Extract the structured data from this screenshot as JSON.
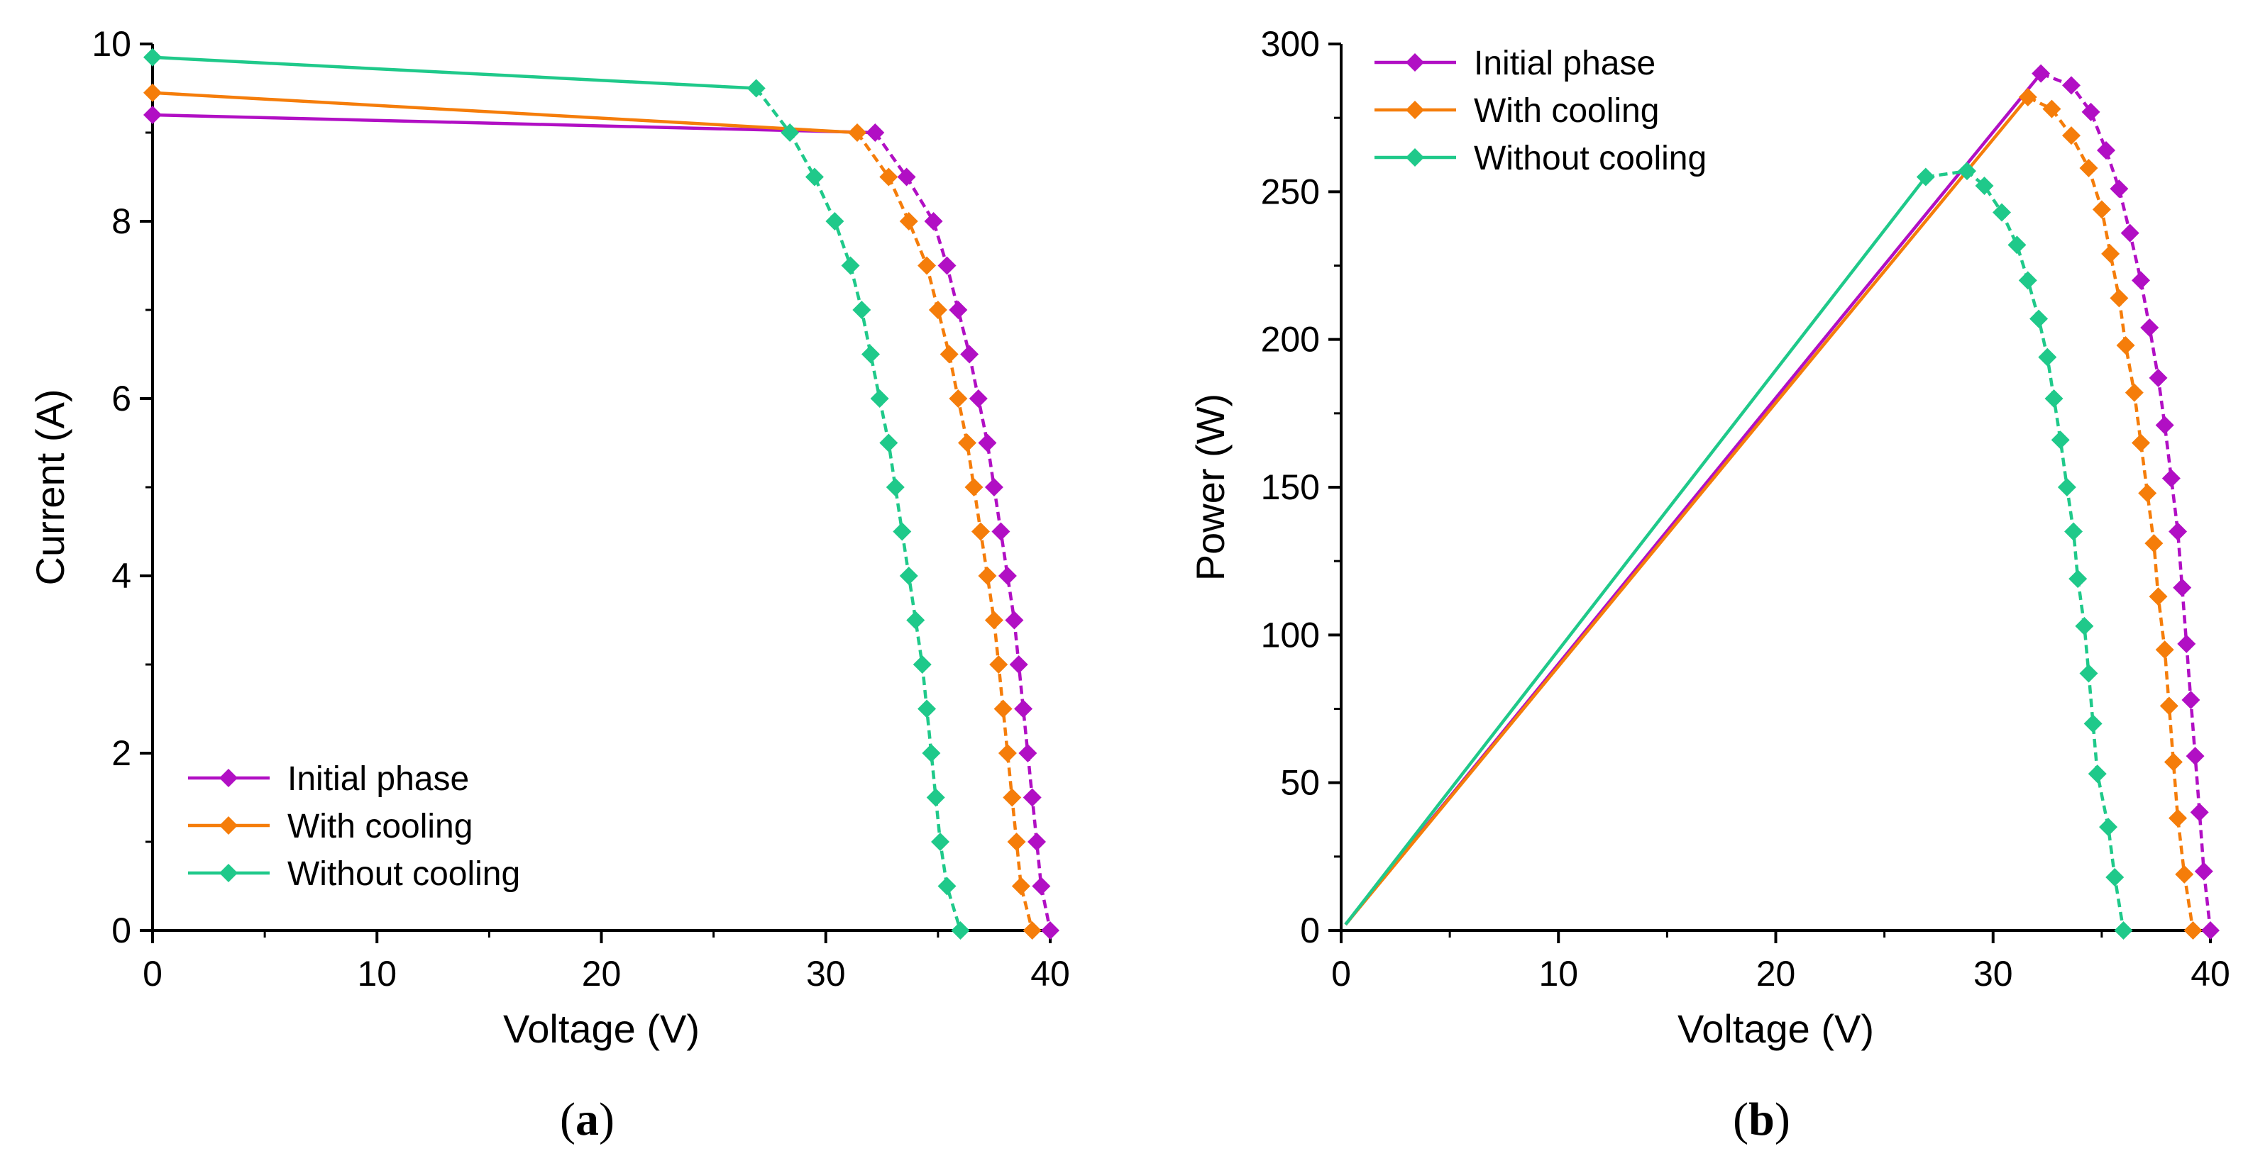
{
  "colors": {
    "initial": "#b10fc4",
    "with_cooling": "#f57d0a",
    "without_cooling": "#1fc98a"
  },
  "chart_data": [
    {
      "type": "line",
      "panel": "a",
      "panel_label": {
        "open": "(",
        "letter": "a",
        "close": ")"
      },
      "xlabel": "Voltage (V)",
      "ylabel": "Current (A)",
      "xlim": [
        0,
        40
      ],
      "ylim": [
        0,
        10
      ],
      "xticks": [
        "0",
        "10",
        "20",
        "30",
        "40"
      ],
      "yticks": [
        "0",
        "2",
        "4",
        "6",
        "8",
        "10"
      ],
      "legend_position": "bottom-left",
      "series": [
        {
          "name": "Initial phase",
          "color_key": "initial",
          "points": [
            [
              0,
              9.2
            ],
            [
              32.2,
              9.0
            ],
            [
              33.6,
              8.5
            ],
            [
              34.8,
              8.0
            ],
            [
              35.4,
              7.5
            ],
            [
              35.9,
              7.0
            ],
            [
              36.4,
              6.5
            ],
            [
              36.8,
              6.0
            ],
            [
              37.2,
              5.5
            ],
            [
              37.5,
              5.0
            ],
            [
              37.8,
              4.5
            ],
            [
              38.1,
              4.0
            ],
            [
              38.4,
              3.5
            ],
            [
              38.6,
              3.0
            ],
            [
              38.8,
              2.5
            ],
            [
              39.0,
              2.0
            ],
            [
              39.2,
              1.5
            ],
            [
              39.4,
              1.0
            ],
            [
              39.6,
              0.5
            ],
            [
              40.0,
              0.0
            ]
          ]
        },
        {
          "name": "With cooling",
          "color_key": "with_cooling",
          "points": [
            [
              0,
              9.45
            ],
            [
              31.4,
              9.0
            ],
            [
              32.8,
              8.5
            ],
            [
              33.7,
              8.0
            ],
            [
              34.5,
              7.5
            ],
            [
              35.0,
              7.0
            ],
            [
              35.5,
              6.5
            ],
            [
              35.9,
              6.0
            ],
            [
              36.3,
              5.5
            ],
            [
              36.6,
              5.0
            ],
            [
              36.9,
              4.5
            ],
            [
              37.2,
              4.0
            ],
            [
              37.5,
              3.5
            ],
            [
              37.7,
              3.0
            ],
            [
              37.9,
              2.5
            ],
            [
              38.1,
              2.0
            ],
            [
              38.3,
              1.5
            ],
            [
              38.5,
              1.0
            ],
            [
              38.7,
              0.5
            ],
            [
              39.2,
              0.0
            ]
          ]
        },
        {
          "name": "Without cooling",
          "color_key": "without_cooling",
          "points": [
            [
              0,
              9.85
            ],
            [
              26.9,
              9.5
            ],
            [
              28.4,
              9.0
            ],
            [
              29.5,
              8.5
            ],
            [
              30.4,
              8.0
            ],
            [
              31.1,
              7.5
            ],
            [
              31.6,
              7.0
            ],
            [
              32.0,
              6.5
            ],
            [
              32.4,
              6.0
            ],
            [
              32.8,
              5.5
            ],
            [
              33.1,
              5.0
            ],
            [
              33.4,
              4.5
            ],
            [
              33.7,
              4.0
            ],
            [
              34.0,
              3.5
            ],
            [
              34.3,
              3.0
            ],
            [
              34.5,
              2.5
            ],
            [
              34.7,
              2.0
            ],
            [
              34.9,
              1.5
            ],
            [
              35.1,
              1.0
            ],
            [
              35.4,
              0.5
            ],
            [
              36.0,
              0.0
            ]
          ]
        }
      ]
    },
    {
      "type": "line",
      "panel": "b",
      "panel_label": {
        "open": "(",
        "letter": "b",
        "close": ")"
      },
      "xlabel": "Voltage (V)",
      "ylabel": "Power (W)",
      "xlim": [
        0,
        40
      ],
      "ylim": [
        0,
        300
      ],
      "xticks": [
        "0",
        "10",
        "20",
        "30",
        "40"
      ],
      "yticks": [
        "0",
        "50",
        "100",
        "150",
        "200",
        "250",
        "300"
      ],
      "legend_position": "top-left",
      "series": [
        {
          "name": "Initial phase",
          "color_key": "initial",
          "points": [
            [
              0.2,
              2
            ],
            [
              32.2,
              290
            ],
            [
              33.6,
              286
            ],
            [
              34.5,
              277
            ],
            [
              35.2,
              264
            ],
            [
              35.8,
              251
            ],
            [
              36.3,
              236
            ],
            [
              36.8,
              220
            ],
            [
              37.2,
              204
            ],
            [
              37.6,
              187
            ],
            [
              37.9,
              171
            ],
            [
              38.2,
              153
            ],
            [
              38.5,
              135
            ],
            [
              38.7,
              116
            ],
            [
              38.9,
              97
            ],
            [
              39.1,
              78
            ],
            [
              39.3,
              59
            ],
            [
              39.5,
              40
            ],
            [
              39.7,
              20
            ],
            [
              40.0,
              0
            ]
          ]
        },
        {
          "name": "With cooling",
          "color_key": "with_cooling",
          "points": [
            [
              0.2,
              2
            ],
            [
              31.6,
              282
            ],
            [
              32.7,
              278
            ],
            [
              33.6,
              269
            ],
            [
              34.4,
              258
            ],
            [
              35.0,
              244
            ],
            [
              35.4,
              229
            ],
            [
              35.8,
              214
            ],
            [
              36.1,
              198
            ],
            [
              36.5,
              182
            ],
            [
              36.8,
              165
            ],
            [
              37.1,
              148
            ],
            [
              37.4,
              131
            ],
            [
              37.6,
              113
            ],
            [
              37.9,
              95
            ],
            [
              38.1,
              76
            ],
            [
              38.3,
              57
            ],
            [
              38.5,
              38
            ],
            [
              38.8,
              19
            ],
            [
              39.2,
              0
            ]
          ]
        },
        {
          "name": "Without cooling",
          "color_key": "without_cooling",
          "points": [
            [
              0.2,
              2
            ],
            [
              26.9,
              255
            ],
            [
              28.8,
              257
            ],
            [
              29.6,
              252
            ],
            [
              30.4,
              243
            ],
            [
              31.1,
              232
            ],
            [
              31.6,
              220
            ],
            [
              32.1,
              207
            ],
            [
              32.5,
              194
            ],
            [
              32.8,
              180
            ],
            [
              33.1,
              166
            ],
            [
              33.4,
              150
            ],
            [
              33.7,
              135
            ],
            [
              33.9,
              119
            ],
            [
              34.2,
              103
            ],
            [
              34.4,
              87
            ],
            [
              34.6,
              70
            ],
            [
              34.8,
              53
            ],
            [
              35.3,
              35
            ],
            [
              35.6,
              18
            ],
            [
              36.0,
              0
            ]
          ]
        }
      ]
    }
  ]
}
